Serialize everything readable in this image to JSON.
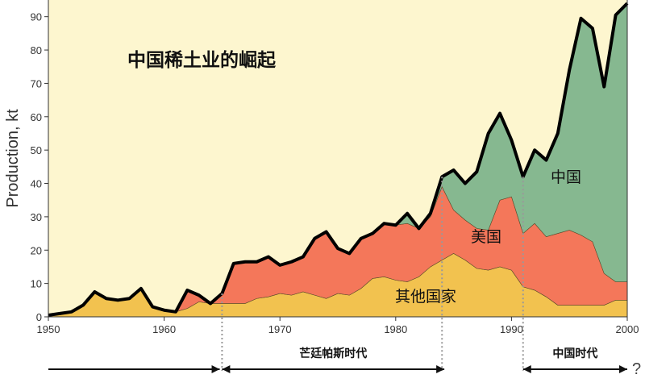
{
  "chart_data": {
    "type": "area",
    "title": "中国稀土业的崛起",
    "ylabel": "Production, kt",
    "xlabel": "",
    "xlim": [
      1950,
      2000
    ],
    "ylim": [
      0,
      95
    ],
    "x_ticks": [
      1950,
      1960,
      1970,
      1980,
      1990,
      2000
    ],
    "y_ticks": [
      0,
      10,
      20,
      30,
      40,
      50,
      60,
      70,
      80,
      90
    ],
    "grid": false,
    "x": [
      1950,
      1951,
      1952,
      1953,
      1954,
      1955,
      1956,
      1957,
      1958,
      1959,
      1960,
      1961,
      1962,
      1963,
      1964,
      1965,
      1966,
      1967,
      1968,
      1969,
      1970,
      1971,
      1972,
      1973,
      1974,
      1975,
      1976,
      1977,
      1978,
      1979,
      1980,
      1981,
      1982,
      1983,
      1984,
      1985,
      1986,
      1987,
      1988,
      1989,
      1990,
      1991,
      1992,
      1993,
      1994,
      1995,
      1996,
      1997,
      1998,
      1999,
      2000
    ],
    "series": [
      {
        "name": "其他国家",
        "color": "#f2c24f",
        "values": [
          0.5,
          1,
          1.5,
          3.5,
          7.5,
          5.5,
          5,
          5.5,
          8.5,
          3,
          2,
          1.5,
          2.5,
          4.5,
          4,
          4,
          4,
          4,
          5.5,
          6,
          7,
          6.5,
          7.5,
          6.5,
          5.5,
          7,
          6.5,
          8.5,
          11.5,
          12,
          11,
          10.5,
          12,
          15,
          17,
          19,
          17,
          14.5,
          14,
          15,
          14,
          9,
          8,
          6,
          3.5,
          3.5,
          3.5,
          3.5,
          3.5,
          5,
          5
        ]
      },
      {
        "name": "美国",
        "color": "#f4775a",
        "values": [
          0,
          0,
          0,
          0,
          0,
          0,
          0,
          0,
          0,
          0,
          0,
          0,
          5.5,
          2,
          0,
          3,
          12,
          12.5,
          11,
          12,
          8.5,
          10,
          10.5,
          17,
          20,
          13.5,
          12.5,
          15,
          13.5,
          16,
          16.5,
          17.5,
          14.5,
          15,
          22,
          13,
          12,
          12,
          12,
          20,
          22,
          16,
          20,
          18,
          21.5,
          22.5,
          21,
          19,
          9.5,
          5.5,
          5.5
        ]
      },
      {
        "name": "中国",
        "color": "#86b890",
        "values": [
          0,
          0,
          0,
          0,
          0,
          0,
          0,
          0,
          0,
          0,
          0,
          0,
          0,
          0,
          0,
          0,
          0,
          0,
          0,
          0,
          0,
          0,
          0,
          0,
          0,
          0,
          0,
          0,
          0,
          0,
          0,
          3,
          0,
          1,
          3,
          12,
          11,
          17,
          29,
          26,
          17,
          17,
          22,
          23,
          30,
          48,
          65,
          64,
          56,
          80,
          83.5
        ]
      }
    ],
    "series_labels": [
      "中国",
      "美国",
      "其他国家"
    ],
    "eras": [
      {
        "label": "",
        "start": 1950,
        "end": 1964.8
      },
      {
        "label": "芒廷帕斯时代",
        "start": 1965,
        "end": 1984.2
      },
      {
        "label": "中国时代",
        "start": 1991,
        "end": 2000
      }
    ],
    "era_dividers": [
      1965,
      1984,
      1991
    ],
    "unknown_marker": "?",
    "colors": {
      "background": "#fdf6cf",
      "outline": "#000000",
      "divider": "#999999"
    }
  }
}
